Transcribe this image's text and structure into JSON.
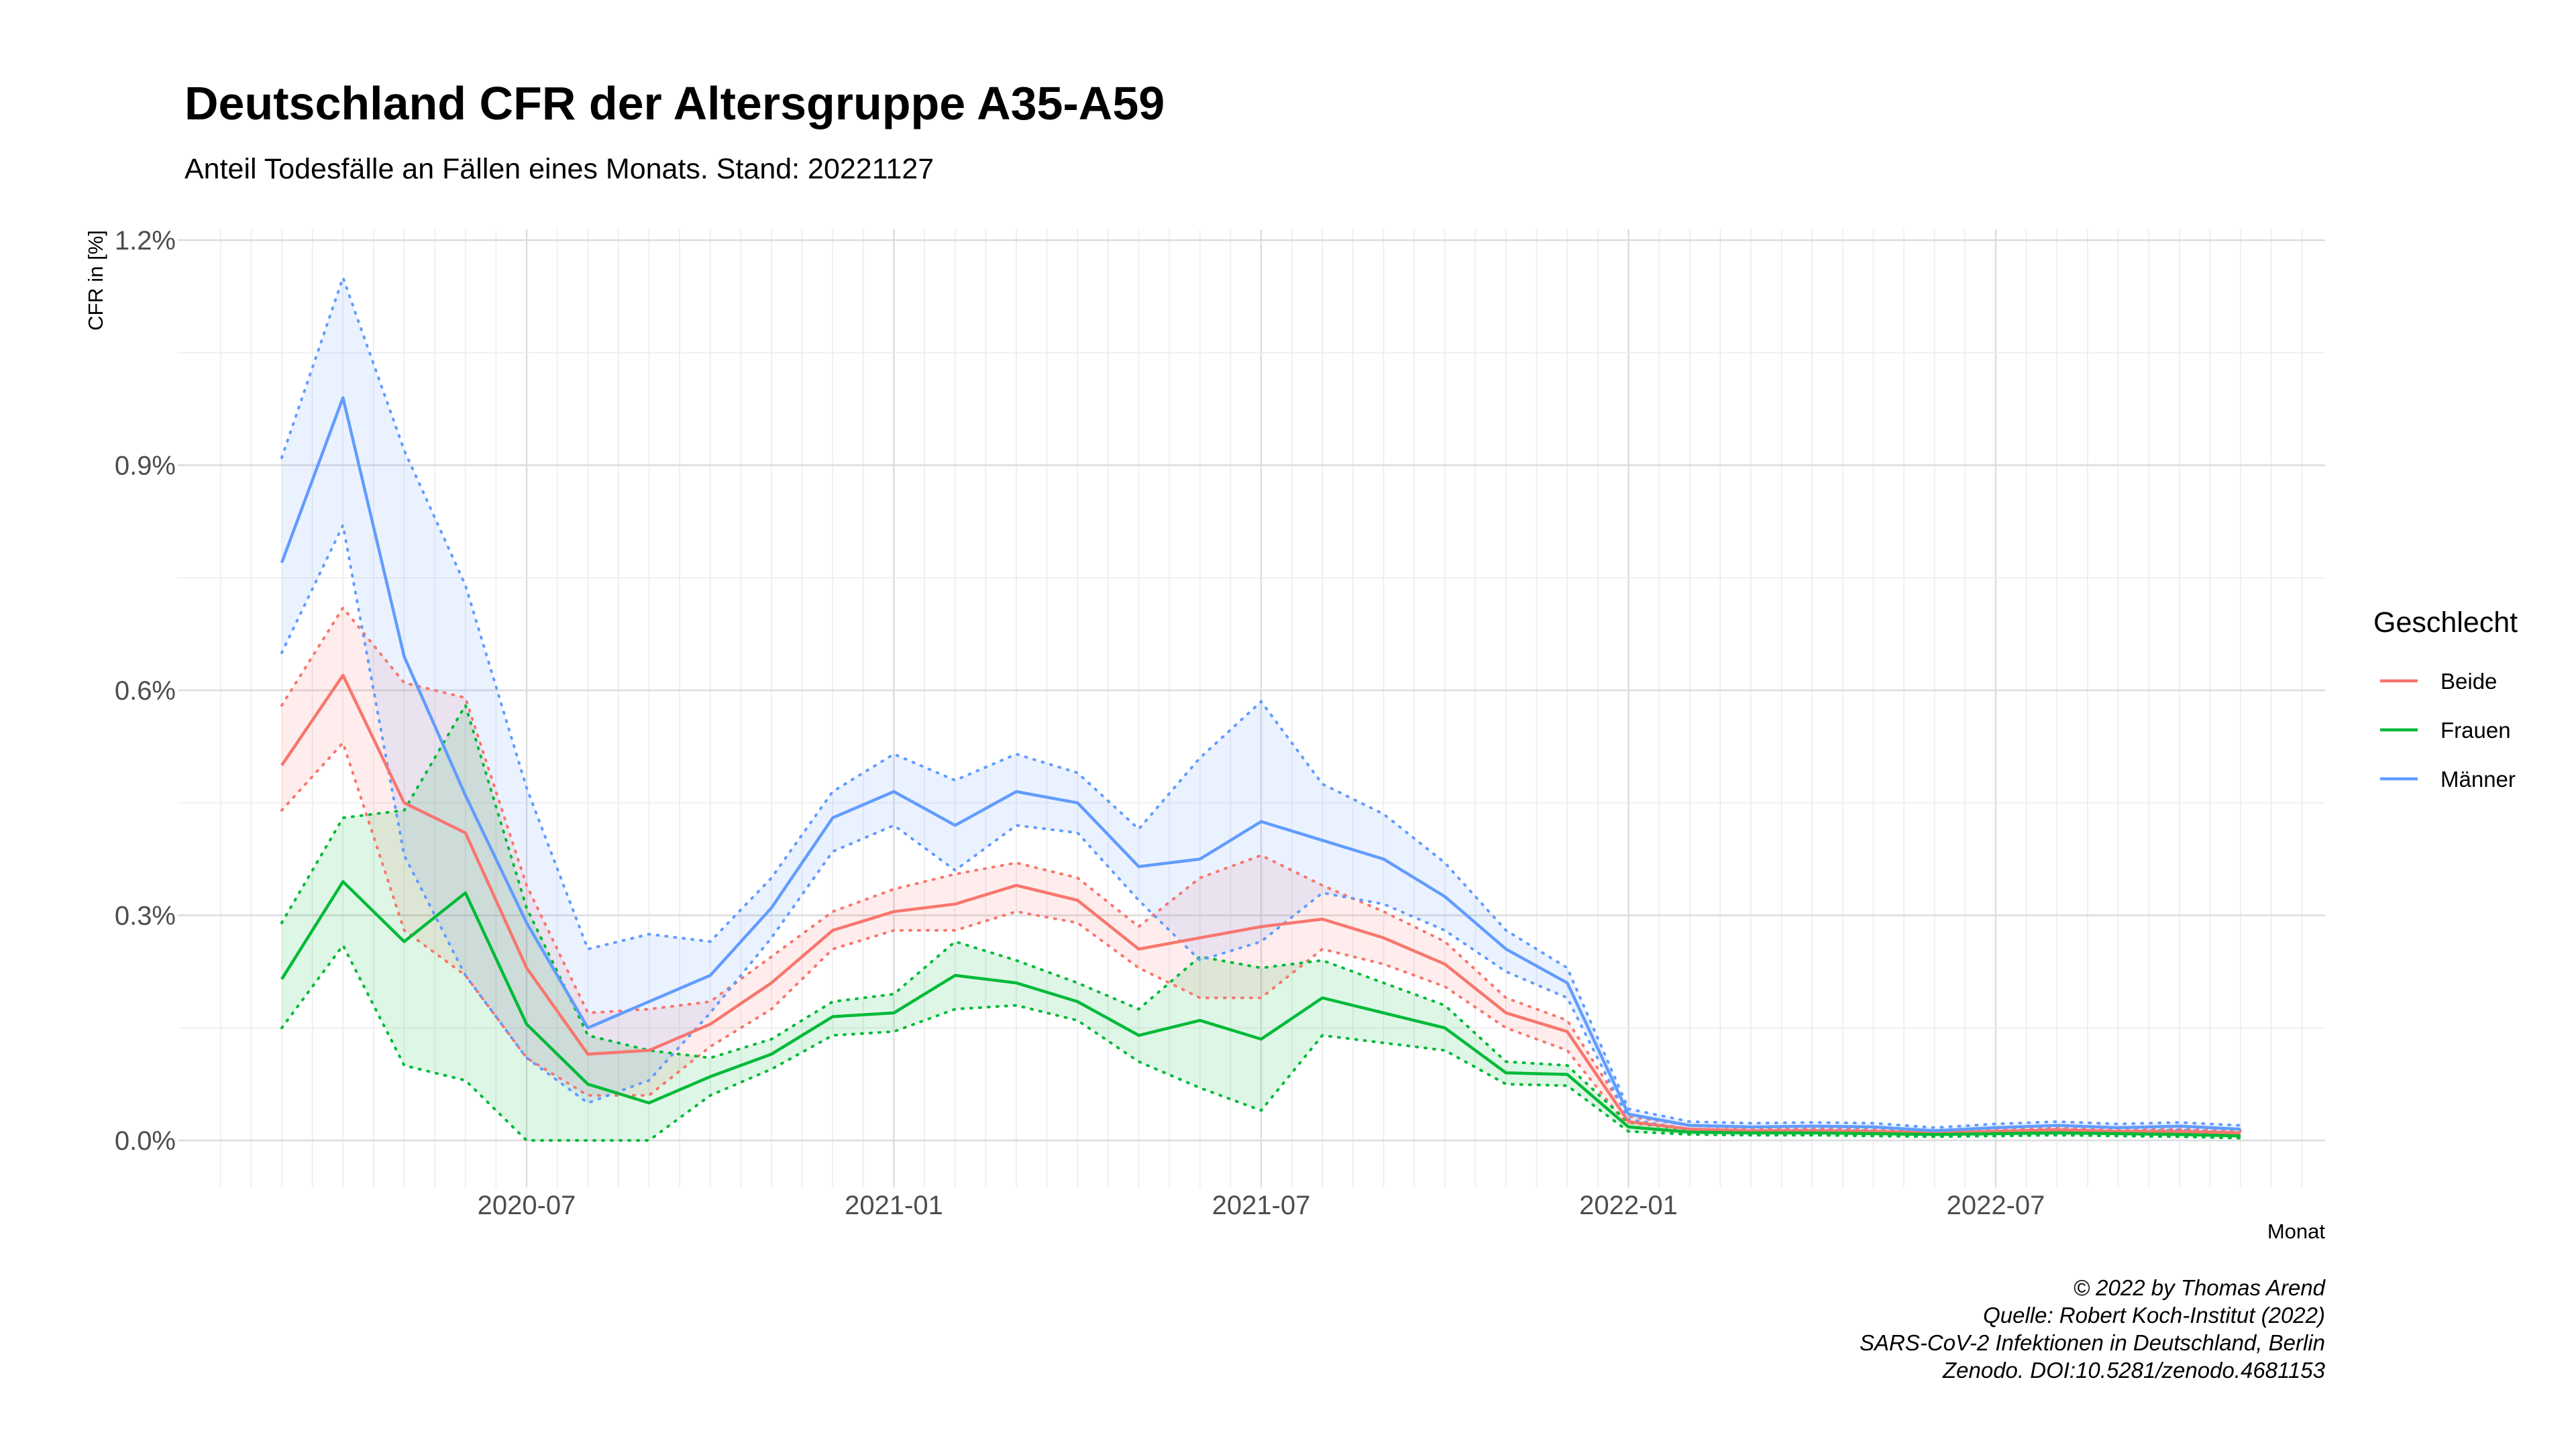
{
  "chart_data": {
    "type": "line",
    "title": "Deutschland CFR der Altersgruppe A35-A59",
    "subtitle": "Anteil Todesfälle an Fällen eines Monats. Stand: 20221127",
    "xlabel": "Monat",
    "ylabel": "CFR in [%]",
    "ylim": [
      0,
      1.2
    ],
    "y_ticks": [
      {
        "value": 0.0,
        "label": "0.0%"
      },
      {
        "value": 0.3,
        "label": "0.3%"
      },
      {
        "value": 0.6,
        "label": "0.6%"
      },
      {
        "value": 0.9,
        "label": "0.9%"
      },
      {
        "value": 1.2,
        "label": "1.2%"
      }
    ],
    "x_ticks": [
      "2020-07",
      "2021-01",
      "2021-07",
      "2022-01",
      "2022-07"
    ],
    "x_start": "2020-03",
    "x_end": "2022-11",
    "x": [
      "2020-03",
      "2020-04",
      "2020-05",
      "2020-06",
      "2020-07",
      "2020-08",
      "2020-09",
      "2020-10",
      "2020-11",
      "2020-12",
      "2021-01",
      "2021-02",
      "2021-03",
      "2021-04",
      "2021-05",
      "2021-06",
      "2021-07",
      "2021-08",
      "2021-09",
      "2021-10",
      "2021-11",
      "2021-12",
      "2022-01",
      "2022-02",
      "2022-03",
      "2022-04",
      "2022-05",
      "2022-06",
      "2022-07",
      "2022-08",
      "2022-09",
      "2022-10",
      "2022-11"
    ],
    "legend": {
      "title": "Geschlecht",
      "position": "right"
    },
    "grid": true,
    "series": [
      {
        "name": "Beide",
        "color": "#F8766D",
        "values": [
          0.5,
          0.62,
          0.45,
          0.41,
          0.23,
          0.115,
          0.12,
          0.155,
          0.21,
          0.28,
          0.305,
          0.315,
          0.34,
          0.32,
          0.255,
          0.27,
          0.285,
          0.295,
          0.27,
          0.235,
          0.17,
          0.145,
          0.025,
          0.015,
          0.013,
          0.013,
          0.012,
          0.01,
          0.012,
          0.014,
          0.012,
          0.012,
          0.01
        ],
        "lower": [
          0.44,
          0.53,
          0.28,
          0.22,
          0.11,
          0.06,
          0.06,
          0.125,
          0.175,
          0.255,
          0.28,
          0.28,
          0.305,
          0.29,
          0.23,
          0.19,
          0.19,
          0.255,
          0.235,
          0.205,
          0.15,
          0.12,
          0.018,
          0.01,
          0.01,
          0.01,
          0.01,
          0.008,
          0.009,
          0.011,
          0.009,
          0.009,
          0.007
        ],
        "upper": [
          0.58,
          0.71,
          0.61,
          0.59,
          0.34,
          0.17,
          0.175,
          0.185,
          0.245,
          0.305,
          0.335,
          0.355,
          0.37,
          0.35,
          0.285,
          0.35,
          0.38,
          0.34,
          0.305,
          0.265,
          0.19,
          0.16,
          0.032,
          0.02,
          0.016,
          0.016,
          0.015,
          0.012,
          0.015,
          0.017,
          0.015,
          0.015,
          0.013
        ]
      },
      {
        "name": "Frauen",
        "color": "#00BA38",
        "values": [
          0.215,
          0.345,
          0.265,
          0.33,
          0.155,
          0.075,
          0.05,
          0.085,
          0.115,
          0.165,
          0.17,
          0.22,
          0.21,
          0.185,
          0.14,
          0.16,
          0.135,
          0.19,
          0.17,
          0.15,
          0.09,
          0.088,
          0.018,
          0.011,
          0.01,
          0.01,
          0.009,
          0.008,
          0.009,
          0.01,
          0.009,
          0.008,
          0.006
        ],
        "lower": [
          0.15,
          0.26,
          0.1,
          0.08,
          0.0,
          0.0,
          0.0,
          0.06,
          0.095,
          0.14,
          0.145,
          0.175,
          0.18,
          0.16,
          0.105,
          0.07,
          0.04,
          0.14,
          0.13,
          0.12,
          0.075,
          0.073,
          0.012,
          0.008,
          0.007,
          0.007,
          0.006,
          0.005,
          0.006,
          0.007,
          0.006,
          0.005,
          0.003
        ],
        "upper": [
          0.29,
          0.43,
          0.44,
          0.58,
          0.31,
          0.14,
          0.12,
          0.11,
          0.135,
          0.185,
          0.195,
          0.265,
          0.24,
          0.21,
          0.175,
          0.245,
          0.23,
          0.24,
          0.21,
          0.18,
          0.105,
          0.1,
          0.024,
          0.014,
          0.013,
          0.013,
          0.012,
          0.011,
          0.012,
          0.013,
          0.012,
          0.011,
          0.009
        ]
      },
      {
        "name": "Männer",
        "color": "#619CFF",
        "values": [
          0.77,
          0.99,
          0.645,
          0.46,
          0.29,
          0.15,
          0.185,
          0.22,
          0.31,
          0.43,
          0.465,
          0.42,
          0.465,
          0.45,
          0.365,
          0.375,
          0.425,
          0.4,
          0.375,
          0.325,
          0.255,
          0.21,
          0.035,
          0.02,
          0.018,
          0.019,
          0.018,
          0.013,
          0.017,
          0.02,
          0.017,
          0.019,
          0.015
        ],
        "lower": [
          0.65,
          0.82,
          0.38,
          0.22,
          0.11,
          0.05,
          0.08,
          0.17,
          0.27,
          0.385,
          0.42,
          0.36,
          0.42,
          0.41,
          0.32,
          0.24,
          0.265,
          0.33,
          0.315,
          0.28,
          0.225,
          0.19,
          0.028,
          0.015,
          0.013,
          0.014,
          0.013,
          0.009,
          0.012,
          0.015,
          0.012,
          0.014,
          0.01
        ],
        "upper": [
          0.91,
          1.15,
          0.92,
          0.74,
          0.47,
          0.255,
          0.275,
          0.265,
          0.35,
          0.465,
          0.515,
          0.48,
          0.515,
          0.49,
          0.415,
          0.51,
          0.585,
          0.475,
          0.435,
          0.37,
          0.28,
          0.23,
          0.042,
          0.025,
          0.023,
          0.024,
          0.023,
          0.017,
          0.022,
          0.025,
          0.022,
          0.024,
          0.02
        ]
      }
    ],
    "caption": [
      "© 2022 by Thomas Arend",
      "Quelle: Robert Koch-Institut (2022)",
      "SARS-CoV-2 Infektionen in Deutschland, Berlin",
      "Zenodo. DOI:10.5281/zenodo.4681153"
    ]
  }
}
